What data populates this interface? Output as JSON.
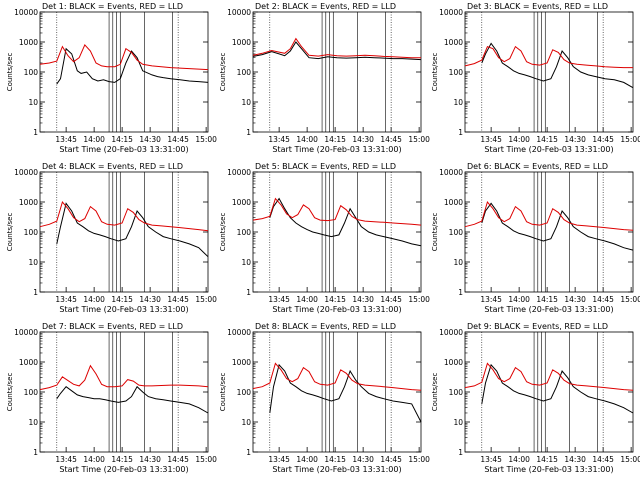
{
  "chart_data": {
    "type": "line",
    "scale": "log-y",
    "ylim": [
      1,
      10000
    ],
    "ylabel": "Counts/sec",
    "x_tick_labels": [
      "13:45",
      "14:00",
      "14:15",
      "14:30",
      "14:45",
      "15:00"
    ],
    "y_tick_labels": [
      "1",
      "10",
      "100",
      "1000",
      "10000"
    ],
    "xlabel": "Start Time (20-Feb-03 13:31:00)",
    "legend_text": "BLACK = Events, RED = LLD",
    "colors": {
      "events": "#000000",
      "lld": "#dd0000",
      "axis": "#000000"
    },
    "time_start_minutes": 0,
    "panels": [
      {
        "title": "Det 1: BLACK = Events, RED = LLD",
        "short_title": "Det 1",
        "series": [
          {
            "name": "Events",
            "x": [
              9,
              11,
              14,
              17,
              20,
              22,
              25,
              28,
              31,
              34,
              37,
              40,
              43,
              46,
              49,
              52,
              55,
              60,
              63,
              66,
              70,
              75,
              80,
              85,
              90
            ],
            "y": [
              40,
              60,
              600,
              400,
              110,
              90,
              100,
              60,
              50,
              55,
              48,
              45,
              60,
              200,
              500,
              300,
              110,
              80,
              70,
              65,
              60,
              55,
              50,
              48,
              45
            ]
          },
          {
            "name": "LLD",
            "x": [
              0,
              5,
              9,
              12,
              15,
              18,
              21,
              24,
              27,
              30,
              33,
              36,
              40,
              43,
              46,
              49,
              52,
              55,
              60,
              65,
              70,
              75,
              80,
              85,
              90
            ],
            "y": [
              180,
              200,
              230,
              700,
              350,
              220,
              300,
              800,
              500,
              200,
              160,
              150,
              150,
              180,
              600,
              450,
              250,
              180,
              160,
              150,
              140,
              135,
              130,
              125,
              120
            ]
          }
        ]
      },
      {
        "title": "Det 2: BLACK = Events, RED = LLD",
        "short_title": "Det 2",
        "series": [
          {
            "name": "Events",
            "x": [
              0,
              5,
              10,
              14,
              17,
              20,
              23,
              26,
              30,
              35,
              40,
              45,
              50,
              55,
              60,
              65,
              70,
              75,
              80,
              85,
              90
            ],
            "y": [
              330,
              380,
              480,
              400,
              350,
              500,
              1000,
              600,
              300,
              280,
              320,
              300,
              290,
              300,
              310,
              300,
              290,
              280,
              280,
              270,
              260
            ]
          },
          {
            "name": "LLD",
            "x": [
              0,
              5,
              10,
              14,
              17,
              20,
              23,
              26,
              30,
              35,
              40,
              45,
              50,
              55,
              60,
              65,
              70,
              75,
              80,
              85,
              90
            ],
            "y": [
              360,
              420,
              520,
              460,
              420,
              600,
              1300,
              700,
              360,
              340,
              380,
              350,
              340,
              350,
              360,
              350,
              330,
              320,
              310,
              300,
              300
            ]
          }
        ]
      },
      {
        "title": "Det 3: BLACK = Events, RED = LLD",
        "short_title": "Det 3",
        "series": [
          {
            "name": "Events",
            "x": [
              9,
              11,
              14,
              17,
              20,
              23,
              26,
              29,
              32,
              35,
              38,
              42,
              46,
              49,
              52,
              55,
              58,
              62,
              66,
              70,
              75,
              80,
              85,
              90
            ],
            "y": [
              200,
              400,
              900,
              500,
              200,
              150,
              110,
              90,
              80,
              70,
              60,
              50,
              60,
              150,
              500,
              300,
              150,
              100,
              80,
              70,
              60,
              55,
              45,
              30
            ]
          },
          {
            "name": "LLD",
            "x": [
              0,
              5,
              9,
              12,
              15,
              18,
              21,
              24,
              27,
              30,
              33,
              36,
              40,
              44,
              47,
              50,
              53,
              56,
              60,
              65,
              70,
              75,
              80,
              85,
              90
            ],
            "y": [
              160,
              190,
              250,
              700,
              600,
              300,
              220,
              280,
              700,
              500,
              220,
              180,
              170,
              200,
              550,
              450,
              260,
              200,
              180,
              170,
              160,
              150,
              145,
              140,
              140
            ]
          }
        ]
      },
      {
        "title": "Det 4: BLACK = Events, RED = LLD",
        "short_title": "Det 4",
        "series": [
          {
            "name": "Events",
            "x": [
              9,
              11,
              14,
              17,
              20,
              23,
              26,
              29,
              32,
              35,
              38,
              42,
              46,
              49,
              52,
              55,
              58,
              62,
              66,
              70,
              75,
              80,
              85,
              90
            ],
            "y": [
              40,
              150,
              900,
              500,
              200,
              150,
              110,
              90,
              80,
              70,
              60,
              50,
              60,
              150,
              500,
              300,
              150,
              100,
              70,
              60,
              50,
              40,
              30,
              15
            ]
          },
          {
            "name": "LLD",
            "x": [
              0,
              5,
              9,
              12,
              15,
              18,
              21,
              24,
              27,
              30,
              33,
              36,
              40,
              44,
              47,
              50,
              53,
              56,
              60,
              65,
              70,
              75,
              80,
              85,
              90
            ],
            "y": [
              150,
              180,
              230,
              1000,
              600,
              300,
              220,
              280,
              700,
              500,
              220,
              180,
              170,
              200,
              600,
              450,
              260,
              200,
              170,
              160,
              150,
              140,
              130,
              120,
              110
            ]
          }
        ]
      },
      {
        "title": "Det 5: BLACK = Events, RED = LLD",
        "short_title": "Det 5",
        "series": [
          {
            "name": "Events",
            "x": [
              9,
              11,
              14,
              17,
              20,
              23,
              26,
              29,
              32,
              35,
              38,
              42,
              46,
              49,
              52,
              55,
              58,
              62,
              66,
              70,
              75,
              80,
              85,
              90
            ],
            "y": [
              300,
              700,
              1300,
              600,
              300,
              200,
              150,
              120,
              100,
              90,
              80,
              70,
              80,
              200,
              600,
              300,
              150,
              100,
              80,
              70,
              60,
              50,
              40,
              35
            ]
          },
          {
            "name": "LLD",
            "x": [
              0,
              5,
              9,
              12,
              15,
              18,
              21,
              24,
              27,
              30,
              33,
              36,
              40,
              44,
              47,
              50,
              53,
              56,
              60,
              65,
              70,
              75,
              80,
              85,
              90
            ],
            "y": [
              250,
              280,
              330,
              1300,
              800,
              400,
              300,
              380,
              800,
              600,
              300,
              250,
              240,
              260,
              750,
              550,
              330,
              260,
              230,
              220,
              210,
              200,
              190,
              180,
              170
            ]
          }
        ]
      },
      {
        "title": "Det 6: BLACK = Events, RED = LLD",
        "short_title": "Det 6",
        "series": [
          {
            "name": "Events",
            "x": [
              9,
              11,
              14,
              17,
              20,
              23,
              26,
              29,
              32,
              35,
              38,
              42,
              46,
              49,
              52,
              55,
              58,
              62,
              66,
              70,
              75,
              80,
              85,
              90
            ],
            "y": [
              200,
              500,
              900,
              500,
              200,
              150,
              110,
              90,
              80,
              70,
              60,
              50,
              60,
              150,
              500,
              300,
              150,
              100,
              70,
              60,
              50,
              40,
              30,
              25
            ]
          },
          {
            "name": "LLD",
            "x": [
              0,
              5,
              9,
              12,
              15,
              18,
              21,
              24,
              27,
              30,
              33,
              36,
              40,
              44,
              47,
              50,
              53,
              56,
              60,
              65,
              70,
              75,
              80,
              85,
              90
            ],
            "y": [
              150,
              180,
              230,
              1000,
              600,
              300,
              220,
              280,
              700,
              500,
              220,
              180,
              170,
              200,
              600,
              450,
              260,
              200,
              170,
              160,
              150,
              140,
              130,
              120,
              115
            ]
          }
        ]
      },
      {
        "title": "Det 7: BLACK = Events, RED = LLD",
        "short_title": "Det 7",
        "series": [
          {
            "name": "Events",
            "x": [
              9,
              11,
              14,
              17,
              20,
              23,
              26,
              29,
              32,
              35,
              38,
              42,
              46,
              49,
              52,
              55,
              58,
              62,
              66,
              70,
              75,
              80,
              85,
              90
            ],
            "y": [
              60,
              90,
              150,
              110,
              80,
              70,
              65,
              60,
              60,
              55,
              50,
              45,
              50,
              70,
              150,
              100,
              70,
              60,
              55,
              50,
              45,
              40,
              30,
              20
            ]
          },
          {
            "name": "LLD",
            "x": [
              0,
              5,
              9,
              12,
              15,
              18,
              21,
              24,
              27,
              30,
              33,
              36,
              40,
              44,
              47,
              50,
              53,
              56,
              60,
              65,
              70,
              75,
              80,
              85,
              90
            ],
            "y": [
              120,
              140,
              170,
              320,
              240,
              180,
              160,
              250,
              750,
              400,
              180,
              150,
              150,
              160,
              260,
              230,
              170,
              160,
              160,
              165,
              170,
              170,
              165,
              160,
              150
            ]
          }
        ]
      },
      {
        "title": "Det 8: BLACK = Events, RED = LLD",
        "short_title": "Det 8",
        "series": [
          {
            "name": "Events",
            "x": [
              9,
              11,
              14,
              17,
              20,
              23,
              26,
              29,
              32,
              35,
              38,
              42,
              46,
              49,
              52,
              55,
              58,
              62,
              66,
              70,
              75,
              80,
              85,
              90
            ],
            "y": [
              20,
              150,
              800,
              500,
              200,
              150,
              110,
              90,
              80,
              70,
              60,
              50,
              60,
              150,
              500,
              250,
              150,
              90,
              70,
              60,
              50,
              45,
              40,
              10
            ]
          },
          {
            "name": "LLD",
            "x": [
              0,
              5,
              9,
              12,
              15,
              18,
              21,
              24,
              27,
              30,
              33,
              36,
              40,
              44,
              47,
              50,
              53,
              56,
              60,
              65,
              70,
              75,
              80,
              85,
              90
            ],
            "y": [
              130,
              150,
              200,
              900,
              550,
              280,
              220,
              280,
              650,
              480,
              220,
              180,
              170,
              200,
              550,
              420,
              250,
              190,
              170,
              160,
              150,
              140,
              130,
              120,
              115
            ]
          }
        ]
      },
      {
        "title": "Det 9: BLACK = Events, RED = LLD",
        "short_title": "Det 9",
        "series": [
          {
            "name": "Events",
            "x": [
              9,
              11,
              14,
              17,
              20,
              23,
              26,
              29,
              32,
              35,
              38,
              42,
              46,
              49,
              52,
              55,
              58,
              62,
              66,
              70,
              75,
              80,
              85,
              90
            ],
            "y": [
              40,
              200,
              800,
              500,
              200,
              150,
              110,
              90,
              80,
              70,
              60,
              50,
              60,
              150,
              500,
              300,
              150,
              100,
              70,
              60,
              50,
              40,
              30,
              20
            ]
          },
          {
            "name": "LLD",
            "x": [
              0,
              5,
              9,
              12,
              15,
              18,
              21,
              24,
              27,
              30,
              33,
              36,
              40,
              44,
              47,
              50,
              53,
              56,
              60,
              65,
              70,
              75,
              80,
              85,
              90
            ],
            "y": [
              140,
              160,
              210,
              900,
              550,
              280,
              220,
              280,
              650,
              480,
              220,
              180,
              170,
              200,
              550,
              420,
              250,
              190,
              170,
              160,
              150,
              140,
              130,
              120,
              115
            ]
          }
        ]
      }
    ]
  }
}
